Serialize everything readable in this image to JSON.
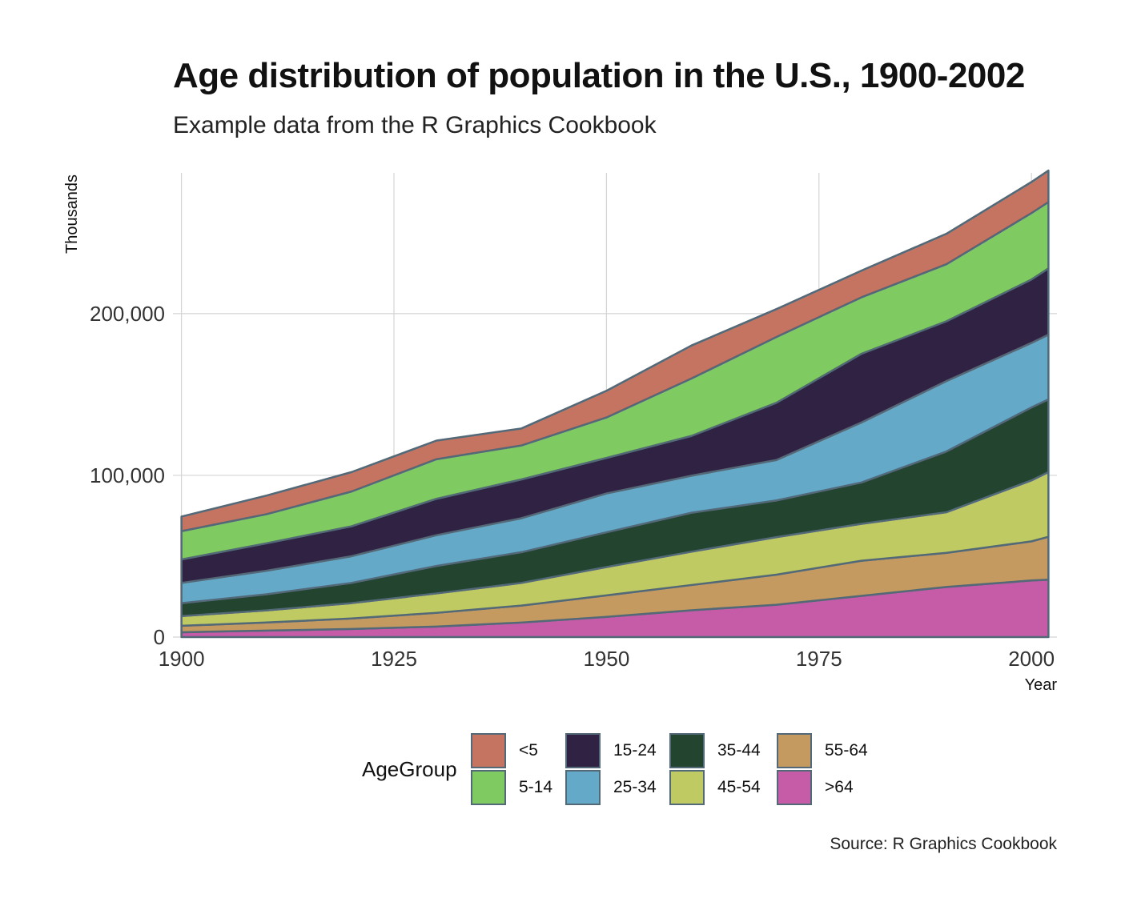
{
  "title": "Age distribution of population in the U.S., 1900-2002",
  "subtitle": "Example data from the R Graphics Cookbook",
  "caption": "Source: R Graphics Cookbook",
  "legend": {
    "title": "AgeGroup",
    "items": [
      {
        "label": "<5",
        "color": "#C57461"
      },
      {
        "label": "5-14",
        "color": "#80CA62"
      },
      {
        "label": "15-24",
        "color": "#302243"
      },
      {
        "label": "25-34",
        "color": "#64A9C8"
      },
      {
        "label": "35-44",
        "color": "#23442F"
      },
      {
        "label": "45-54",
        "color": "#C0CA62"
      },
      {
        "label": "55-64",
        "color": "#C49A61"
      },
      {
        "label": ">64",
        "color": "#C65BA8"
      }
    ]
  },
  "chart_data": {
    "type": "area",
    "stacked": true,
    "x": [
      1900,
      1910,
      1920,
      1930,
      1940,
      1950,
      1960,
      1970,
      1980,
      1990,
      2000,
      2002
    ],
    "series": [
      {
        "name": ">64",
        "values": [
          3000,
          4000,
          5000,
          6500,
          9000,
          12500,
          16600,
          20000,
          25500,
          31000,
          35000,
          35500
        ]
      },
      {
        "name": "55-64",
        "values": [
          4000,
          5000,
          6500,
          8500,
          10500,
          13300,
          15600,
          18600,
          21700,
          21100,
          24200,
          26500
        ]
      },
      {
        "name": "45-54",
        "values": [
          6000,
          7500,
          9500,
          12000,
          14000,
          17500,
          20600,
          23200,
          22800,
          25100,
          37700,
          40000
        ]
      },
      {
        "name": "35-44",
        "values": [
          8000,
          10000,
          12500,
          17000,
          19000,
          21500,
          24100,
          22700,
          25600,
          37600,
          45100,
          45000
        ]
      },
      {
        "name": "25-34",
        "values": [
          12500,
          14500,
          16500,
          19000,
          21000,
          24000,
          22900,
          25000,
          37100,
          43500,
          39900,
          40000
        ]
      },
      {
        "name": "15-24",
        "values": [
          14500,
          17000,
          18500,
          22500,
          24000,
          22000,
          24600,
          35400,
          42500,
          37000,
          39200,
          41000
        ]
      },
      {
        "name": "5-14",
        "values": [
          17500,
          18000,
          21500,
          24500,
          21000,
          25000,
          35500,
          40700,
          34900,
          35300,
          41100,
          41000
        ]
      },
      {
        "name": "<5",
        "values": [
          9000,
          11500,
          12000,
          11500,
          10500,
          16500,
          20400,
          17200,
          16500,
          18800,
          19200,
          19500
        ]
      }
    ],
    "xlabel": "Year",
    "ylabel": "Thousands",
    "xlim": [
      1899,
      2003
    ],
    "ylim": [
      0,
      290000
    ],
    "xticks": [
      1900,
      1925,
      1950,
      1975,
      2000
    ],
    "xtick_labels": [
      "1900",
      "1925",
      "1950",
      "1975",
      "2000"
    ],
    "yticks": [
      0,
      100000,
      200000
    ],
    "ytick_labels": [
      "0",
      "100,000",
      "200,000"
    ],
    "grid": true,
    "legend_position": "bottom",
    "outline_color": "#536978"
  }
}
